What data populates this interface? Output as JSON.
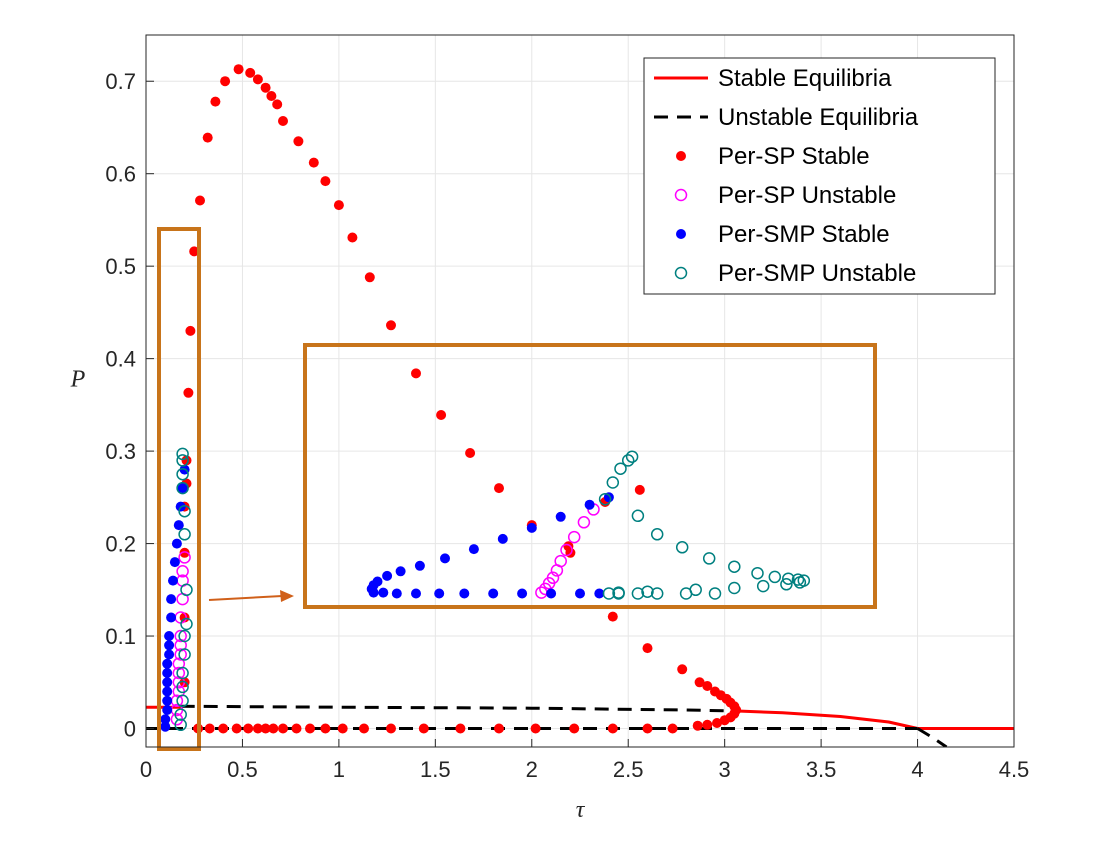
{
  "chart_data": {
    "type": "scatter",
    "xlabel": "τ",
    "ylabel": "P",
    "xlim": [
      0,
      4.5
    ],
    "ylim": [
      -0.02,
      0.75
    ],
    "xticks": [
      "0",
      "0.5",
      "1",
      "1.5",
      "2",
      "2.5",
      "3",
      "3.5",
      "4",
      "4.5"
    ],
    "yticks": [
      "0",
      "0.1",
      "0.2",
      "0.3",
      "0.4",
      "0.5",
      "0.6",
      "0.7"
    ],
    "grid": true,
    "legend_position": "top-right",
    "legend": [
      {
        "label": "Stable Equilibria",
        "style": "line",
        "color": "#ff0000"
      },
      {
        "label": "Unstable Equilibria",
        "style": "dashed",
        "color": "#000000"
      },
      {
        "label": "Per-SP Stable",
        "style": "filled-dot",
        "color": "#ff0000"
      },
      {
        "label": "Per-SP Unstable",
        "style": "open-circle",
        "color": "#ff00ff"
      },
      {
        "label": "Per-SMP Stable",
        "style": "filled-dot",
        "color": "#0000ff"
      },
      {
        "label": "Per-SMP Unstable",
        "style": "open-circle",
        "color": "#008080"
      }
    ],
    "series": [
      {
        "name": "Stable Equilibria",
        "kind": "line",
        "color": "#ff0000",
        "segments": [
          [
            [
              0,
              0.023
            ],
            [
              0.18,
              0.023
            ]
          ],
          [
            [
              3.05,
              0.019
            ],
            [
              3.3,
              0.017
            ],
            [
              3.6,
              0.013
            ],
            [
              3.85,
              0.007
            ],
            [
              4.0,
              0.0
            ]
          ],
          [
            [
              4.0,
              0.0
            ],
            [
              4.5,
              0.0
            ]
          ]
        ]
      },
      {
        "name": "Unstable Equilibria",
        "kind": "dashed",
        "color": "#000000",
        "segments": [
          [
            [
              0.18,
              0.024
            ],
            [
              1.0,
              0.023
            ],
            [
              2.0,
              0.022
            ],
            [
              2.8,
              0.02
            ],
            [
              3.05,
              0.019
            ]
          ],
          [
            [
              0,
              0.0
            ],
            [
              4.0,
              0.0
            ]
          ],
          [
            [
              4.0,
              0.0
            ],
            [
              4.08,
              -0.01
            ],
            [
              4.15,
              -0.02
            ]
          ]
        ]
      },
      {
        "name": "Per-SP Stable",
        "kind": "filled-dot",
        "color": "#ff0000",
        "points": [
          [
            0.21,
            0.265
          ],
          [
            0.21,
            0.29
          ],
          [
            0.22,
            0.363
          ],
          [
            0.23,
            0.43
          ],
          [
            0.25,
            0.516
          ],
          [
            0.28,
            0.571
          ],
          [
            0.32,
            0.639
          ],
          [
            0.36,
            0.678
          ],
          [
            0.41,
            0.7
          ],
          [
            0.48,
            0.713
          ],
          [
            0.54,
            0.709
          ],
          [
            0.58,
            0.702
          ],
          [
            0.62,
            0.693
          ],
          [
            0.65,
            0.684
          ],
          [
            0.68,
            0.675
          ],
          [
            0.71,
            0.657
          ],
          [
            0.79,
            0.635
          ],
          [
            0.87,
            0.612
          ],
          [
            0.93,
            0.592
          ],
          [
            1.0,
            0.566
          ],
          [
            1.07,
            0.531
          ],
          [
            1.16,
            0.488
          ],
          [
            1.27,
            0.436
          ],
          [
            1.4,
            0.384
          ],
          [
            1.53,
            0.339
          ],
          [
            1.68,
            0.298
          ],
          [
            1.83,
            0.26
          ],
          [
            2.0,
            0.22
          ],
          [
            2.2,
            0.19
          ],
          [
            2.42,
            0.121
          ],
          [
            2.6,
            0.087
          ],
          [
            2.78,
            0.064
          ],
          [
            2.87,
            0.05
          ],
          [
            2.91,
            0.046
          ],
          [
            2.95,
            0.04
          ],
          [
            2.98,
            0.036
          ],
          [
            3.01,
            0.032
          ],
          [
            3.03,
            0.028
          ],
          [
            3.05,
            0.024
          ],
          [
            3.06,
            0.02
          ],
          [
            3.05,
            0.016
          ],
          [
            3.03,
            0.012
          ],
          [
            3.0,
            0.009
          ],
          [
            2.96,
            0.006
          ],
          [
            2.91,
            0.004
          ],
          [
            2.86,
            0.003
          ],
          [
            0.27,
            0.0
          ],
          [
            0.33,
            0.0
          ],
          [
            0.4,
            0.0
          ],
          [
            0.47,
            0.0
          ],
          [
            0.53,
            0.0
          ],
          [
            0.58,
            0.0
          ],
          [
            0.62,
            0.0
          ],
          [
            0.66,
            0.0
          ],
          [
            0.71,
            0.0
          ],
          [
            0.78,
            0.0
          ],
          [
            0.85,
            0.0
          ],
          [
            0.93,
            0.0
          ],
          [
            1.02,
            0.0
          ],
          [
            1.13,
            0.0
          ],
          [
            1.27,
            0.0
          ],
          [
            1.44,
            0.0
          ],
          [
            1.63,
            0.0
          ],
          [
            1.83,
            0.0
          ],
          [
            2.02,
            0.0
          ],
          [
            2.22,
            0.0
          ],
          [
            2.42,
            0.0
          ],
          [
            2.6,
            0.0
          ],
          [
            2.73,
            0.0
          ],
          [
            0.2,
            0.05
          ],
          [
            0.2,
            0.12
          ],
          [
            0.2,
            0.19
          ],
          [
            0.2,
            0.24
          ],
          [
            2.19,
            0.197
          ],
          [
            2.38,
            0.245
          ],
          [
            2.56,
            0.258
          ]
        ]
      },
      {
        "name": "Per-SP Unstable",
        "kind": "open-circle",
        "color": "#ff00ff",
        "points": [
          [
            0.16,
            0.01
          ],
          [
            0.16,
            0.02
          ],
          [
            0.16,
            0.03
          ],
          [
            0.17,
            0.04
          ],
          [
            0.17,
            0.05
          ],
          [
            0.17,
            0.06
          ],
          [
            0.17,
            0.07
          ],
          [
            0.18,
            0.08
          ],
          [
            0.18,
            0.09
          ],
          [
            0.18,
            0.1
          ],
          [
            0.18,
            0.12
          ],
          [
            0.19,
            0.14
          ],
          [
            0.19,
            0.16
          ],
          [
            0.19,
            0.17
          ],
          [
            0.2,
            0.185
          ],
          [
            2.05,
            0.147
          ],
          [
            2.07,
            0.151
          ],
          [
            2.09,
            0.157
          ],
          [
            2.11,
            0.163
          ],
          [
            2.13,
            0.171
          ],
          [
            2.15,
            0.181
          ],
          [
            2.18,
            0.193
          ],
          [
            2.22,
            0.207
          ],
          [
            2.27,
            0.223
          ],
          [
            2.32,
            0.237
          ]
        ]
      },
      {
        "name": "Per-SMP Stable",
        "kind": "filled-dot",
        "color": "#0000ff",
        "points": [
          [
            0.1,
            0.002
          ],
          [
            0.1,
            0.01
          ],
          [
            0.11,
            0.02
          ],
          [
            0.11,
            0.03
          ],
          [
            0.11,
            0.04
          ],
          [
            0.11,
            0.05
          ],
          [
            0.11,
            0.06
          ],
          [
            0.11,
            0.07
          ],
          [
            0.12,
            0.08
          ],
          [
            0.12,
            0.09
          ],
          [
            0.12,
            0.1
          ],
          [
            0.13,
            0.12
          ],
          [
            0.13,
            0.14
          ],
          [
            0.14,
            0.16
          ],
          [
            0.15,
            0.18
          ],
          [
            0.16,
            0.2
          ],
          [
            0.17,
            0.22
          ],
          [
            0.18,
            0.24
          ],
          [
            0.19,
            0.26
          ],
          [
            0.2,
            0.28
          ],
          [
            1.18,
            0.147
          ],
          [
            1.17,
            0.151
          ],
          [
            1.18,
            0.155
          ],
          [
            1.2,
            0.159
          ],
          [
            1.25,
            0.165
          ],
          [
            1.32,
            0.17
          ],
          [
            1.42,
            0.176
          ],
          [
            1.55,
            0.184
          ],
          [
            1.7,
            0.194
          ],
          [
            1.85,
            0.205
          ],
          [
            2.0,
            0.217
          ],
          [
            2.15,
            0.229
          ],
          [
            2.3,
            0.242
          ],
          [
            2.4,
            0.25
          ],
          [
            1.23,
            0.147
          ],
          [
            1.3,
            0.146
          ],
          [
            1.4,
            0.146
          ],
          [
            1.52,
            0.146
          ],
          [
            1.65,
            0.146
          ],
          [
            1.8,
            0.146
          ],
          [
            1.95,
            0.146
          ],
          [
            2.1,
            0.146
          ],
          [
            2.25,
            0.146
          ],
          [
            2.35,
            0.146
          ]
        ]
      },
      {
        "name": "Per-SMP Unstable",
        "kind": "open-circle",
        "color": "#008080",
        "points": [
          [
            0.18,
            0.004
          ],
          [
            0.18,
            0.015
          ],
          [
            0.19,
            0.03
          ],
          [
            0.19,
            0.045
          ],
          [
            0.19,
            0.06
          ],
          [
            0.2,
            0.08
          ],
          [
            0.2,
            0.1
          ],
          [
            0.21,
            0.113
          ],
          [
            0.21,
            0.15
          ],
          [
            0.2,
            0.21
          ],
          [
            0.2,
            0.235
          ],
          [
            0.19,
            0.26
          ],
          [
            0.19,
            0.275
          ],
          [
            0.19,
            0.29
          ],
          [
            0.19,
            0.297
          ],
          [
            2.38,
            0.248
          ],
          [
            2.42,
            0.266
          ],
          [
            2.46,
            0.281
          ],
          [
            2.5,
            0.29
          ],
          [
            2.52,
            0.294
          ],
          [
            2.55,
            0.23
          ],
          [
            2.65,
            0.21
          ],
          [
            2.78,
            0.196
          ],
          [
            2.92,
            0.184
          ],
          [
            3.05,
            0.175
          ],
          [
            3.17,
            0.168
          ],
          [
            3.26,
            0.164
          ],
          [
            3.33,
            0.162
          ],
          [
            3.38,
            0.161
          ],
          [
            3.41,
            0.16
          ],
          [
            3.39,
            0.158
          ],
          [
            3.32,
            0.156
          ],
          [
            3.2,
            0.154
          ],
          [
            3.05,
            0.152
          ],
          [
            2.85,
            0.15
          ],
          [
            2.6,
            0.148
          ],
          [
            2.45,
            0.147
          ],
          [
            2.4,
            0.146
          ],
          [
            2.45,
            0.146
          ],
          [
            2.55,
            0.146
          ],
          [
            2.65,
            0.146
          ],
          [
            2.8,
            0.146
          ],
          [
            2.95,
            0.146
          ]
        ]
      }
    ],
    "inset": {
      "series_colors": [
        "#ff0000",
        "#000000"
      ]
    }
  }
}
